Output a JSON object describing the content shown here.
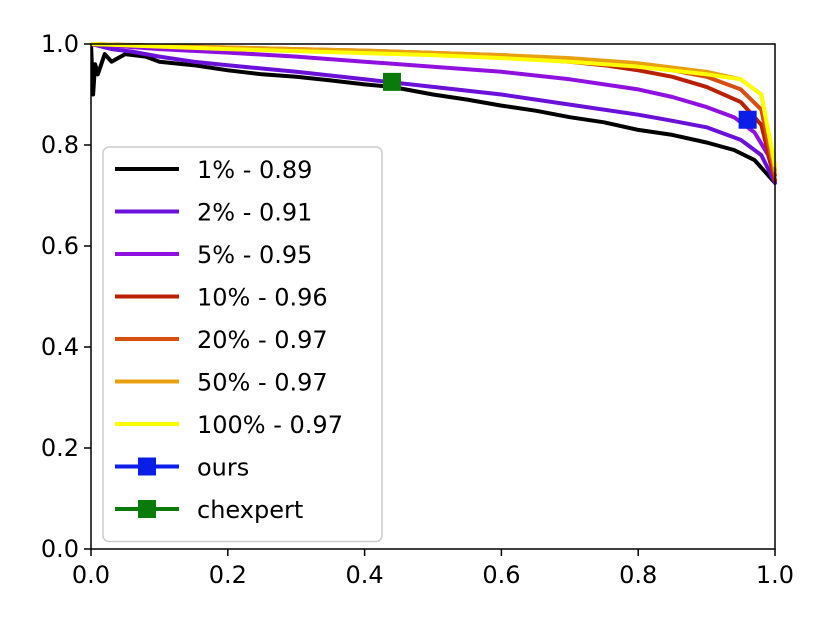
{
  "chart_data": {
    "type": "line",
    "title": "",
    "xlabel": "",
    "ylabel": "",
    "xlim": [
      0.0,
      1.0
    ],
    "ylim": [
      0.0,
      1.0
    ],
    "xticks": [
      "0.0",
      "0.2",
      "0.4",
      "0.6",
      "0.8",
      "1.0"
    ],
    "yticks": [
      "0.0",
      "0.2",
      "0.4",
      "0.6",
      "0.8",
      "1.0"
    ],
    "grid": false,
    "legend_position": "center-left",
    "series": [
      {
        "name": "1% - 0.89",
        "color": "#000000",
        "points": [
          [
            0.0,
            1.0
          ],
          [
            0.003,
            0.9
          ],
          [
            0.006,
            0.96
          ],
          [
            0.01,
            0.94
          ],
          [
            0.02,
            0.98
          ],
          [
            0.03,
            0.965
          ],
          [
            0.05,
            0.98
          ],
          [
            0.08,
            0.975
          ],
          [
            0.1,
            0.965
          ],
          [
            0.15,
            0.958
          ],
          [
            0.2,
            0.948
          ],
          [
            0.25,
            0.94
          ],
          [
            0.3,
            0.935
          ],
          [
            0.35,
            0.928
          ],
          [
            0.4,
            0.92
          ],
          [
            0.44,
            0.915
          ],
          [
            0.5,
            0.9
          ],
          [
            0.55,
            0.89
          ],
          [
            0.6,
            0.878
          ],
          [
            0.65,
            0.868
          ],
          [
            0.7,
            0.855
          ],
          [
            0.75,
            0.845
          ],
          [
            0.8,
            0.83
          ],
          [
            0.85,
            0.82
          ],
          [
            0.9,
            0.805
          ],
          [
            0.94,
            0.79
          ],
          [
            0.97,
            0.77
          ],
          [
            1.0,
            0.725
          ]
        ]
      },
      {
        "name": "2% - 0.91",
        "color": "#6a10d8",
        "points": [
          [
            0.0,
            1.0
          ],
          [
            0.03,
            0.99
          ],
          [
            0.06,
            0.985
          ],
          [
            0.1,
            0.975
          ],
          [
            0.15,
            0.965
          ],
          [
            0.2,
            0.958
          ],
          [
            0.3,
            0.945
          ],
          [
            0.4,
            0.93
          ],
          [
            0.5,
            0.915
          ],
          [
            0.6,
            0.9
          ],
          [
            0.7,
            0.88
          ],
          [
            0.8,
            0.86
          ],
          [
            0.85,
            0.848
          ],
          [
            0.9,
            0.835
          ],
          [
            0.95,
            0.81
          ],
          [
            0.98,
            0.78
          ],
          [
            1.0,
            0.725
          ]
        ]
      },
      {
        "name": "5% - 0.95",
        "color": "#9010e0",
        "points": [
          [
            0.0,
            1.0
          ],
          [
            0.1,
            0.99
          ],
          [
            0.2,
            0.983
          ],
          [
            0.3,
            0.975
          ],
          [
            0.4,
            0.965
          ],
          [
            0.5,
            0.955
          ],
          [
            0.6,
            0.945
          ],
          [
            0.7,
            0.93
          ],
          [
            0.8,
            0.91
          ],
          [
            0.85,
            0.895
          ],
          [
            0.9,
            0.875
          ],
          [
            0.94,
            0.855
          ],
          [
            0.97,
            0.825
          ],
          [
            0.99,
            0.78
          ],
          [
            1.0,
            0.73
          ]
        ]
      },
      {
        "name": "10% - 0.96",
        "color": "#b82000",
        "points": [
          [
            0.0,
            1.0
          ],
          [
            0.2,
            0.992
          ],
          [
            0.4,
            0.985
          ],
          [
            0.5,
            0.98
          ],
          [
            0.6,
            0.975
          ],
          [
            0.65,
            0.97
          ],
          [
            0.7,
            0.965
          ],
          [
            0.75,
            0.958
          ],
          [
            0.8,
            0.948
          ],
          [
            0.85,
            0.935
          ],
          [
            0.9,
            0.915
          ],
          [
            0.95,
            0.885
          ],
          [
            0.98,
            0.84
          ],
          [
            1.0,
            0.73
          ]
        ]
      },
      {
        "name": "20% - 0.97",
        "color": "#d84e10",
        "points": [
          [
            0.0,
            1.0
          ],
          [
            0.2,
            0.993
          ],
          [
            0.4,
            0.987
          ],
          [
            0.6,
            0.978
          ],
          [
            0.7,
            0.97
          ],
          [
            0.8,
            0.958
          ],
          [
            0.85,
            0.948
          ],
          [
            0.9,
            0.935
          ],
          [
            0.95,
            0.91
          ],
          [
            0.98,
            0.87
          ],
          [
            1.0,
            0.74
          ]
        ]
      },
      {
        "name": "50% - 0.97",
        "color": "#e8a010",
        "points": [
          [
            0.0,
            1.0
          ],
          [
            0.2,
            0.993
          ],
          [
            0.4,
            0.987
          ],
          [
            0.6,
            0.978
          ],
          [
            0.7,
            0.972
          ],
          [
            0.8,
            0.962
          ],
          [
            0.9,
            0.945
          ],
          [
            0.95,
            0.93
          ],
          [
            0.98,
            0.9
          ],
          [
            1.0,
            0.75
          ]
        ]
      },
      {
        "name": "100% - 0.97",
        "color": "#ffff00",
        "points": [
          [
            0.0,
            1.0
          ],
          [
            0.2,
            0.99
          ],
          [
            0.4,
            0.982
          ],
          [
            0.5,
            0.978
          ],
          [
            0.6,
            0.972
          ],
          [
            0.7,
            0.965
          ],
          [
            0.8,
            0.955
          ],
          [
            0.9,
            0.94
          ],
          [
            0.95,
            0.93
          ],
          [
            0.98,
            0.9
          ],
          [
            1.0,
            0.76
          ]
        ]
      }
    ],
    "markers": [
      {
        "name": "ours",
        "color": "#0a1ee8",
        "x": 0.96,
        "y": 0.85
      },
      {
        "name": "chexpert",
        "color": "#0a7a0a",
        "x": 0.44,
        "y": 0.925
      }
    ]
  }
}
